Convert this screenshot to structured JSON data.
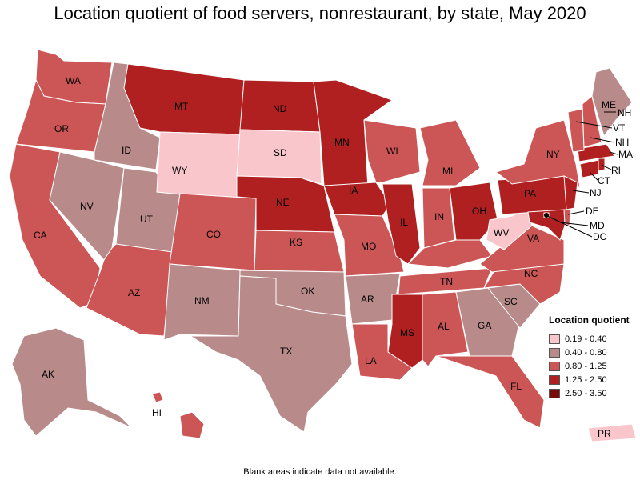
{
  "title": "Location quotient of food servers, nonrestaurant, by state, May 2020",
  "footnote": "Blank areas indicate data not available.",
  "legend": {
    "title": "Location quotient",
    "bins": [
      {
        "label": "0.19 - 0.40",
        "color": "#f9c6cc"
      },
      {
        "label": "0.40 - 0.80",
        "color": "#b88a8a"
      },
      {
        "label": "0.80 - 1.25",
        "color": "#cc5555"
      },
      {
        "label": "1.25 - 2.50",
        "color": "#b02020"
      },
      {
        "label": "2.50 - 3.50",
        "color": "#7a0a0a"
      }
    ]
  },
  "states": {
    "WA": "0.80 - 1.25",
    "OR": "0.80 - 1.25",
    "CA": "0.80 - 1.25",
    "ID": "0.40 - 0.80",
    "NV": "0.40 - 0.80",
    "UT": "0.40 - 0.80",
    "AZ": "0.80 - 1.25",
    "MT": "1.25 - 2.50",
    "WY": "0.19 - 0.40",
    "CO": "0.80 - 1.25",
    "NM": "0.40 - 0.80",
    "ND": "1.25 - 2.50",
    "SD": "0.19 - 0.40",
    "NE": "1.25 - 2.50",
    "KS": "0.80 - 1.25",
    "OK": "0.40 - 0.80",
    "TX": "0.40 - 0.80",
    "MN": "1.25 - 2.50",
    "IA": "1.25 - 2.50",
    "MO": "0.80 - 1.25",
    "AR": "0.40 - 0.80",
    "LA": "0.80 - 1.25",
    "WI": "0.80 - 1.25",
    "IL": "1.25 - 2.50",
    "MI": "0.80 - 1.25",
    "IN": "0.80 - 1.25",
    "OH": "1.25 - 2.50",
    "KY": "0.80 - 1.25",
    "TN": "0.80 - 1.25",
    "MS": "1.25 - 2.50",
    "AL": "0.80 - 1.25",
    "GA": "0.40 - 0.80",
    "FL": "0.80 - 1.25",
    "SC": "0.40 - 0.80",
    "NC": "0.80 - 1.25",
    "VA": "0.80 - 1.25",
    "WV": "0.19 - 0.40",
    "PA": "1.25 - 2.50",
    "NY": "0.80 - 1.25",
    "ME": "0.40 - 0.80",
    "VT": "0.80 - 1.25",
    "NH": "0.80 - 1.25",
    "MA": "1.25 - 2.50",
    "RI": "1.25 - 2.50",
    "CT": "1.25 - 2.50",
    "NJ": "1.25 - 2.50",
    "DE": "0.80 - 1.25",
    "MD": "1.25 - 2.50",
    "DC": "2.50 - 3.50",
    "AK": "0.40 - 0.80",
    "HI": "0.80 - 1.25",
    "PR": "0.19 - 0.40"
  }
}
